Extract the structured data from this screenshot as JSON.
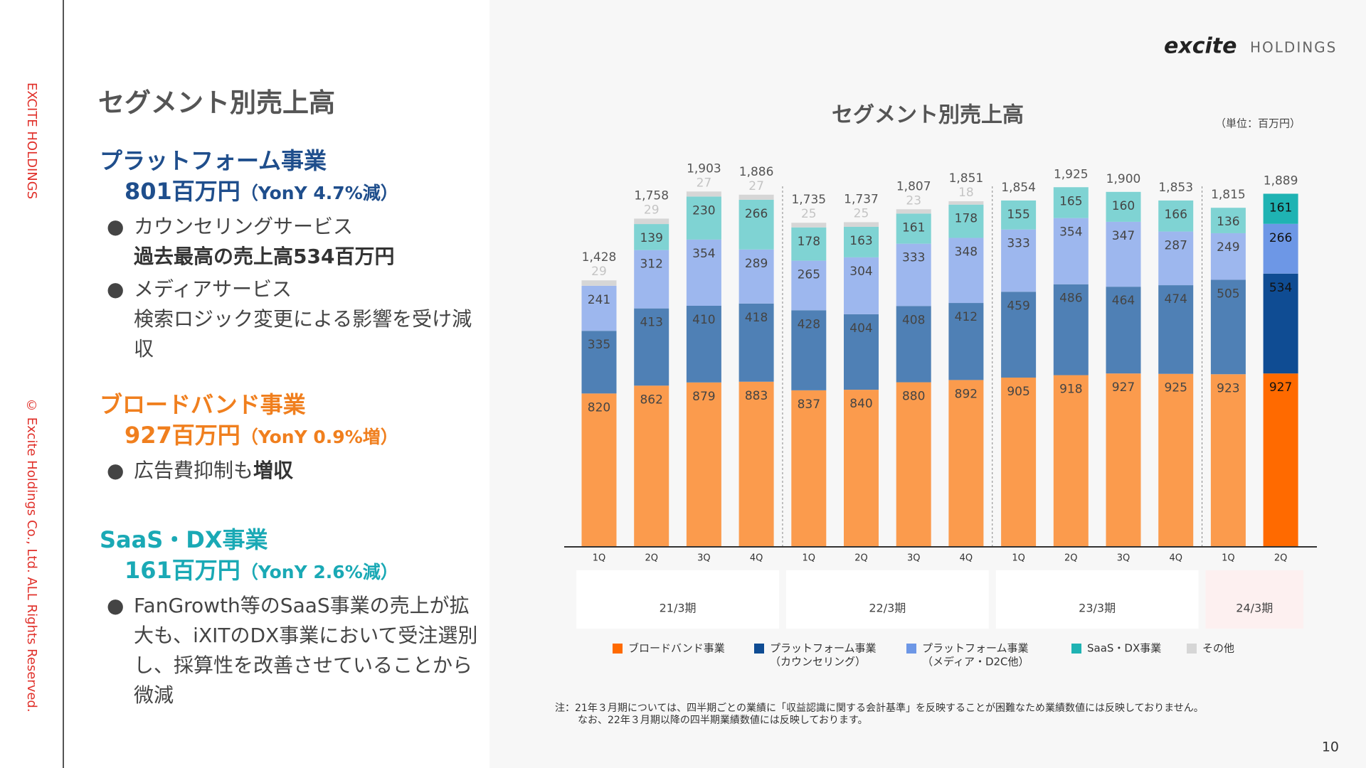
{
  "slide": {
    "side_brand": "EXCITE HOLDINGS",
    "copyright": "© Excite Holdings Co., Ltd. ALL Rights Reserved.",
    "logo_main": "excite",
    "logo_sub": "HOLDINGS",
    "title": "セグメント別売上高",
    "page_number": "10",
    "segments": [
      {
        "name": "プラットフォーム事業",
        "amount": "801百万円",
        "change": "（YonY 4.7%減）",
        "color": "#1f4e8c",
        "bullets": [
          [
            [
              {
                "text": "カウンセリングサービス"
              }
            ],
            [
              {
                "text": "過去最高の売上高534百万円",
                "bold": true
              }
            ]
          ],
          [
            [
              {
                "text": "メディアサービス"
              }
            ],
            [
              {
                "text": "検索ロジック変更による影響を受け減収"
              }
            ]
          ]
        ]
      },
      {
        "name": "ブロードバンド事業",
        "amount": "927百万円",
        "change": "（YonY 0.9%増）",
        "color": "#f07f1e",
        "bullets": [
          [
            [
              {
                "text": "広告費抑制も"
              },
              {
                "text": "増収",
                "bold": true
              }
            ]
          ]
        ]
      },
      {
        "name": "SaaS・DX事業",
        "amount": "161百万円",
        "change": "（YonY 2.6%減）",
        "color": "#1aa9b5",
        "bullets": [
          [
            [
              {
                "text": "FanGrowth等のSaaS事業の売上が拡大も、iXITのDX事業において受注選別し、採算性を改善させていることから微減"
              }
            ]
          ]
        ]
      }
    ]
  },
  "chart_data": {
    "type": "stacked_bar",
    "title": "セグメント別売上高",
    "unit": "（単位：百万円）",
    "period_groups": [
      {
        "label": "21/3期",
        "quarters": [
          "1Q",
          "2Q",
          "3Q",
          "4Q"
        ],
        "background": "#ffffff"
      },
      {
        "label": "22/3期",
        "quarters": [
          "1Q",
          "2Q",
          "3Q",
          "4Q"
        ],
        "background": "#ffffff"
      },
      {
        "label": "23/3期",
        "quarters": [
          "1Q",
          "2Q",
          "3Q",
          "4Q"
        ],
        "background": "#ffffff"
      },
      {
        "label": "24/3期",
        "quarters": [
          "1Q",
          "2Q"
        ],
        "background": "#fdf0f0"
      }
    ],
    "ylim": [
      0,
      2000
    ],
    "highlight_index": 13,
    "series": [
      {
        "name": "ブロードバンド事業",
        "note": null,
        "color": "#fb9b4d",
        "highlight_color": "#ff6a00",
        "values": [
          820,
          862,
          879,
          883,
          837,
          840,
          880,
          892,
          905,
          918,
          927,
          925,
          923,
          927
        ]
      },
      {
        "name": "プラットフォーム事業",
        "note": "（カウンセリング）",
        "color": "#4f80b5",
        "highlight_color": "#0f4c93",
        "values": [
          335,
          413,
          410,
          418,
          428,
          404,
          408,
          412,
          459,
          486,
          464,
          474,
          505,
          534
        ]
      },
      {
        "name": "プラットフォーム事業",
        "note": "（メディア・D2C他）",
        "color": "#9db7ee",
        "highlight_color": "#6d97e6",
        "values": [
          241,
          312,
          354,
          289,
          265,
          304,
          333,
          348,
          333,
          354,
          347,
          287,
          249,
          266
        ]
      },
      {
        "name": "SaaS・DX事業",
        "note": null,
        "color": "#7fd3d3",
        "highlight_color": "#1fb3b3",
        "values": [
          null,
          139,
          230,
          266,
          178,
          163,
          161,
          178,
          155,
          165,
          160,
          166,
          136,
          161
        ]
      },
      {
        "name": "その他",
        "note": null,
        "color": "#d6d6d6",
        "highlight_color": "#d6d6d6",
        "values": [
          29,
          29,
          27,
          27,
          25,
          25,
          23,
          18,
          null,
          null,
          null,
          null,
          null,
          null
        ]
      }
    ],
    "totals": [
      1428,
      1758,
      1903,
      1886,
      1735,
      1737,
      1807,
      1851,
      1854,
      1925,
      1900,
      1853,
      1815,
      1889
    ],
    "total_labels": [
      "1,428",
      "1,758",
      "1,903",
      "1,886",
      "1,735",
      "1,737",
      "1,807",
      "1,851",
      "1,854",
      "1,925",
      "1,900",
      "1,853",
      "1,815",
      "1,889"
    ]
  },
  "footnote": [
    "注：21年３月期については、四半期ごとの業績に「収益認識に関する会計基準」を反映することが困難なため業績数値には反映しておりません。",
    "なお、22年３月期以降の四半期業績数値には反映しております。"
  ]
}
